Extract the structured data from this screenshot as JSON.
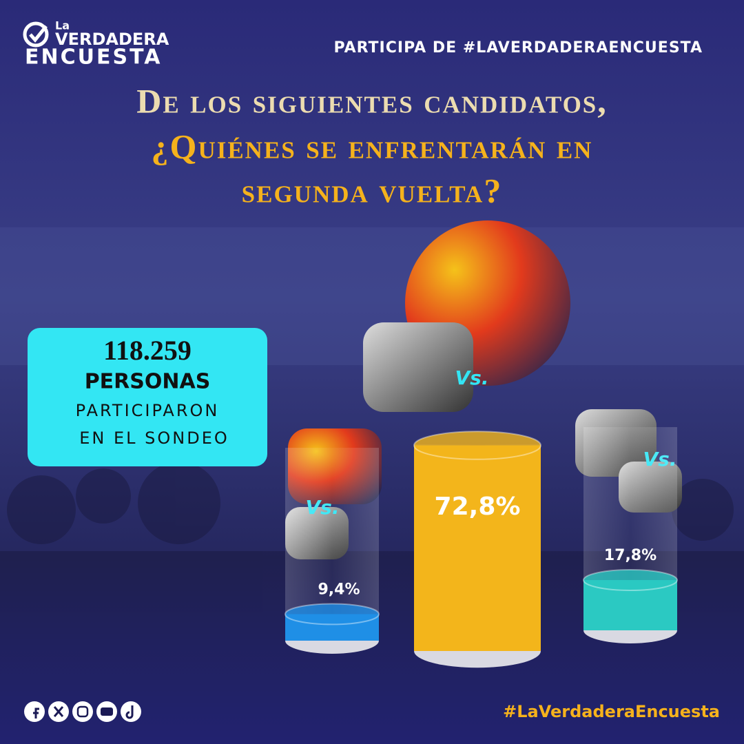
{
  "header": {
    "brand_small": "La",
    "brand_line1": "VERDADERA",
    "brand_line2": "ENCUESTA",
    "cta": "PARTICIPA DE #LAVERDADERAENCUESTA"
  },
  "title": {
    "line1": "De los siguientes candidatos,",
    "line2": "¿Quiénes se enfrentarán en",
    "line3": "segunda vuelta?"
  },
  "participants": {
    "count": "118.259",
    "line1": "PERSONAS",
    "line2": "PARTICIPARON",
    "line3": "EN EL SONDEO"
  },
  "vs_label": "Vs.",
  "chart_data": {
    "type": "bar",
    "categories": [
      null,
      null,
      null
    ],
    "values": [
      9.4,
      72.8,
      17.8
    ],
    "value_labels": [
      "9,4%",
      "72,8%",
      "17,8%"
    ],
    "colors": [
      "#1f8fe6",
      "#f3b51b",
      "#2bc9c2"
    ]
  },
  "footer": {
    "hashtag": "#LaVerdaderaEncuesta"
  }
}
